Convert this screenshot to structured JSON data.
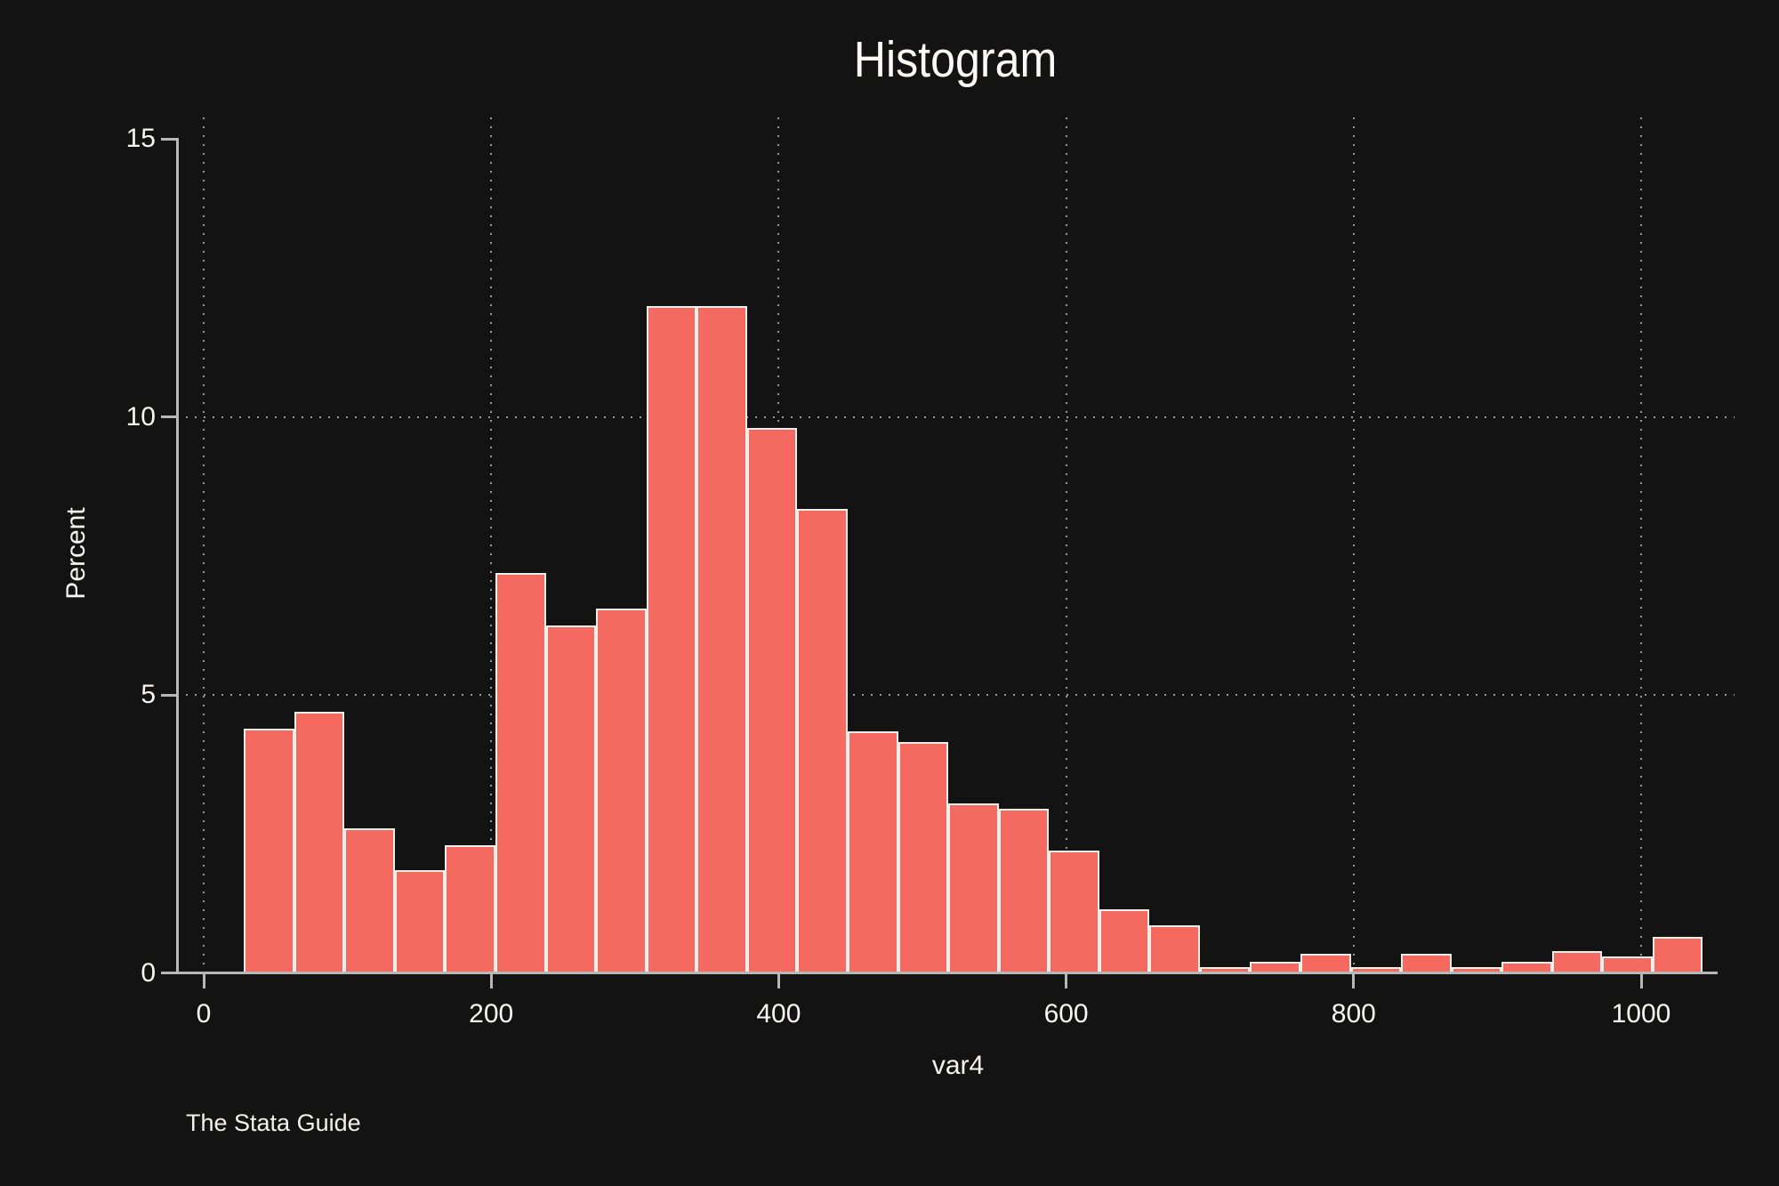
{
  "chart": {
    "title": "Histogram",
    "xlabel": "var4",
    "ylabel": "Percent",
    "watermark": "The Stata Guide"
  },
  "chart_data": {
    "type": "bar",
    "subtype": "histogram",
    "title": "Histogram",
    "xlabel": "var4",
    "ylabel": "Percent",
    "ylim": [
      0,
      15
    ],
    "xlim": [
      0,
      1050
    ],
    "y_ticks": [
      0,
      5,
      10,
      15
    ],
    "x_ticks": [
      0,
      200,
      400,
      600,
      800,
      1000
    ],
    "y_grid_values": [
      5,
      10
    ],
    "x_grid_values": [
      0,
      200,
      400,
      600,
      800,
      1000
    ],
    "grid_style": "dotted",
    "legend": null,
    "bin_start": 28,
    "bin_width": 35,
    "percents": [
      4.4,
      4.7,
      2.6,
      1.85,
      2.3,
      7.2,
      6.25,
      6.55,
      12,
      12,
      9.8,
      8.35,
      4.35,
      4.15,
      3.05,
      2.95,
      2.2,
      1.15,
      0.85,
      0.1,
      0.2,
      0.35,
      0.1,
      0.35,
      0.1,
      0.2,
      0.4,
      0.3,
      0.65
    ]
  },
  "colors": {
    "background": "#131313",
    "bar_fill": "#f56a60",
    "bar_edge": "#f0efea",
    "axis": "#b7b7b7",
    "gridline": "#979797",
    "text": "#f7f6f1"
  }
}
